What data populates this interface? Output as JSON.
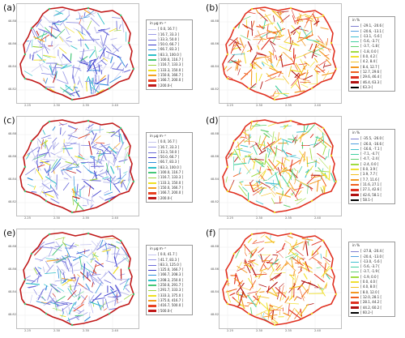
{
  "y_ticks": [
    "48.88",
    "48.86",
    "48.84",
    "48.82"
  ],
  "x_ticks": [
    "2.25",
    "2.30",
    "2.35",
    "2.40"
  ],
  "panels": [
    {
      "label": "(a)",
      "legend_title": "in µg m⁻³",
      "theme": "conc",
      "entries": [
        "[ 0.0, 16.7 ]",
        "] 16.7, 33.3 ]",
        "] 33.3, 50.0 ]",
        "] 50.0, 66.7 ]",
        "] 66.7, 83.3 ]",
        "] 83.3, 100.0 ]",
        "] 100.0, 116.7 ]",
        "] 116.7, 133.3 ]",
        "] 133.3, 150.0 ]",
        "] 150.0, 166.7 ]",
        "] 166.7, 200.0 ]",
        "] 200.0–[ "
      ],
      "colors": [
        "#c6c6ee",
        "#9a9ae6",
        "#6a6ad8",
        "#3a3acc",
        "#2c8cdc",
        "#2cc0c8",
        "#44c878",
        "#9cd43c",
        "#f0e020",
        "#f4a020",
        "#e84020",
        "#c01818"
      ]
    },
    {
      "label": "(b)",
      "legend_title": "in %",
      "theme": "pct",
      "entries": [
        "[ -29.1, -20.6 [",
        "[ -20.6, -13.1 [",
        "[ -13.1, -5.6 [",
        "[ -5.6, -3.7 [",
        "[ -3.7, -1.8 [",
        "[ -1.8, 0.0 [",
        "[ 0.0, 4.2 [",
        "[ 4.2, 8.4 [",
        "[ 8.4, 12.7 [",
        "[ 12.7, 29.6 [",
        "[ 29.6, 46.4 [",
        "[ 46.4, 63.3 [",
        "[ 63.3–]"
      ],
      "colors": [
        "#8080d0",
        "#50a0e0",
        "#40c0d0",
        "#40d0a0",
        "#60d070",
        "#a0dc40",
        "#f0e030",
        "#f4c020",
        "#f49820",
        "#f06020",
        "#e03020",
        "#b01010",
        "#000000"
      ]
    },
    {
      "label": "(c)",
      "legend_title": "in µg m⁻³",
      "theme": "conc",
      "entries": [
        "[ 0.0, 16.7 ]",
        "] 16.7, 33.3 ]",
        "] 33.3, 50.0 ]",
        "] 50.0, 66.7 ]",
        "] 66.7, 83.3 ]",
        "] 83.3, 100.0 ]",
        "] 100.0, 116.7 ]",
        "] 116.7, 133.3 ]",
        "] 133.3, 150.0 ]",
        "] 150.0, 166.7 ]",
        "] 166.7, 200.0 ]",
        "] 200.0–[ "
      ],
      "colors": [
        "#c6c6ee",
        "#9a9ae6",
        "#6a6ad8",
        "#3a3acc",
        "#2c8cdc",
        "#2cc0c8",
        "#44c878",
        "#9cd43c",
        "#f0e020",
        "#f4a020",
        "#e84020",
        "#c01818"
      ]
    },
    {
      "label": "(d)",
      "legend_title": "in %",
      "theme": "pct2",
      "entries": [
        "[ -35.5, -26.0 [",
        "[ -26.0, -16.6 [",
        "[ -16.6, -7.1 [",
        "[ -7.1, -4.7 [",
        "[ -4.7, -2.4 [",
        "[ -2.4, 0.0 [",
        "[ 0.0, 3.9 [",
        "[ 3.9, 7.7 [",
        "[ 7.7, 11.6 [",
        "[ 11.6, 27.1 [",
        "[ 27.1, 42.6 [",
        "[ 42.6, 58.1 [",
        "[ 58.1–]"
      ],
      "colors": [
        "#8080d0",
        "#50a0e0",
        "#40c0d0",
        "#40d0a0",
        "#60d070",
        "#a0dc40",
        "#f0e030",
        "#f4c020",
        "#f49820",
        "#f06020",
        "#e03020",
        "#b01010",
        "#000000"
      ]
    },
    {
      "label": "(e)",
      "legend_title": "in µg m⁻³",
      "theme": "conc",
      "entries": [
        "[ 0.0, 41.7 ]",
        "] 41.7, 83.3 ]",
        "] 83.3, 125.0 ]",
        "] 125.0, 166.7 ]",
        "] 166.7, 208.3 ]",
        "] 208.3, 250.0 ]",
        "] 250.0, 291.7 ]",
        "] 291.7, 333.3 ]",
        "] 333.3, 375.0 ]",
        "] 375.0, 416.7 ]",
        "] 416.7, 500.0 ]",
        "] 500.0–[ "
      ],
      "colors": [
        "#c6c6ee",
        "#9a9ae6",
        "#6a6ad8",
        "#3a3acc",
        "#2c8cdc",
        "#2cc0c8",
        "#44c878",
        "#9cd43c",
        "#f0e020",
        "#f4a020",
        "#e84020",
        "#c01818"
      ]
    },
    {
      "label": "(f)",
      "legend_title": "in %",
      "theme": "pct",
      "entries": [
        "[ -27.8, -20.4 [",
        "[ -20.4, -13.0 [",
        "[ -13.0, -5.6 [",
        "[ -5.6, -3.7 [",
        "[ -3.7, -1.9 [",
        "[ -1.9, 0.0 [",
        "[ 0.0, 4.0 [",
        "[ 4.0, 8.0 [",
        "[ 8.0, 12.0 [",
        "[ 12.0, 28.1 [",
        "[ 28.1, 44.2 [",
        "[ 44.2, 60.2 [",
        "[ 60.2–]"
      ],
      "colors": [
        "#8080d0",
        "#50a0e0",
        "#40c0d0",
        "#40d0a0",
        "#60d070",
        "#a0dc40",
        "#f0e030",
        "#f4c020",
        "#f49820",
        "#f06020",
        "#e03020",
        "#b01010",
        "#000000"
      ]
    }
  ]
}
